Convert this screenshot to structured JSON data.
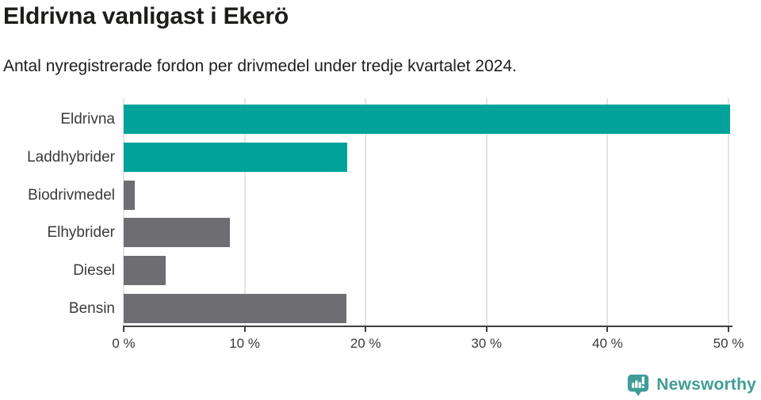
{
  "header": {
    "title": "Eldrivna vanligast i Ekerö",
    "subtitle": "Antal nyregistrerade fordon per drivmedel under tredje kvartalet 2024."
  },
  "chart_data": {
    "type": "bar",
    "orientation": "horizontal",
    "title": "Eldrivna vanligast i Ekerö",
    "subtitle": "Antal nyregistrerade fordon per drivmedel under tredje kvartalet 2024.",
    "categories": [
      "Eldrivna",
      "Laddhybrider",
      "Biodrivmedel",
      "Elhybrider",
      "Diesel",
      "Bensin"
    ],
    "values": [
      50.1,
      18.5,
      0.9,
      8.8,
      3.5,
      18.4
    ],
    "unit": "%",
    "xlim": [
      0,
      50
    ],
    "x_tick_values": [
      0,
      10,
      20,
      30,
      40,
      50
    ],
    "x_tick_labels": [
      "0 %",
      "10 %",
      "20 %",
      "30 %",
      "40 %",
      "50 %"
    ],
    "bar_colors": [
      "#00a29a",
      "#00a29a",
      "#6d6d72",
      "#6d6d72",
      "#6d6d72",
      "#6d6d72"
    ],
    "highlight_color": "#00a29a",
    "default_color": "#6d6d72",
    "gridlines": true,
    "legend": false
  },
  "footer": {
    "brand": "Newsworthy",
    "brand_color": "#3f9d98",
    "logo_icon": "bar-chart-speech-bubble-icon"
  }
}
